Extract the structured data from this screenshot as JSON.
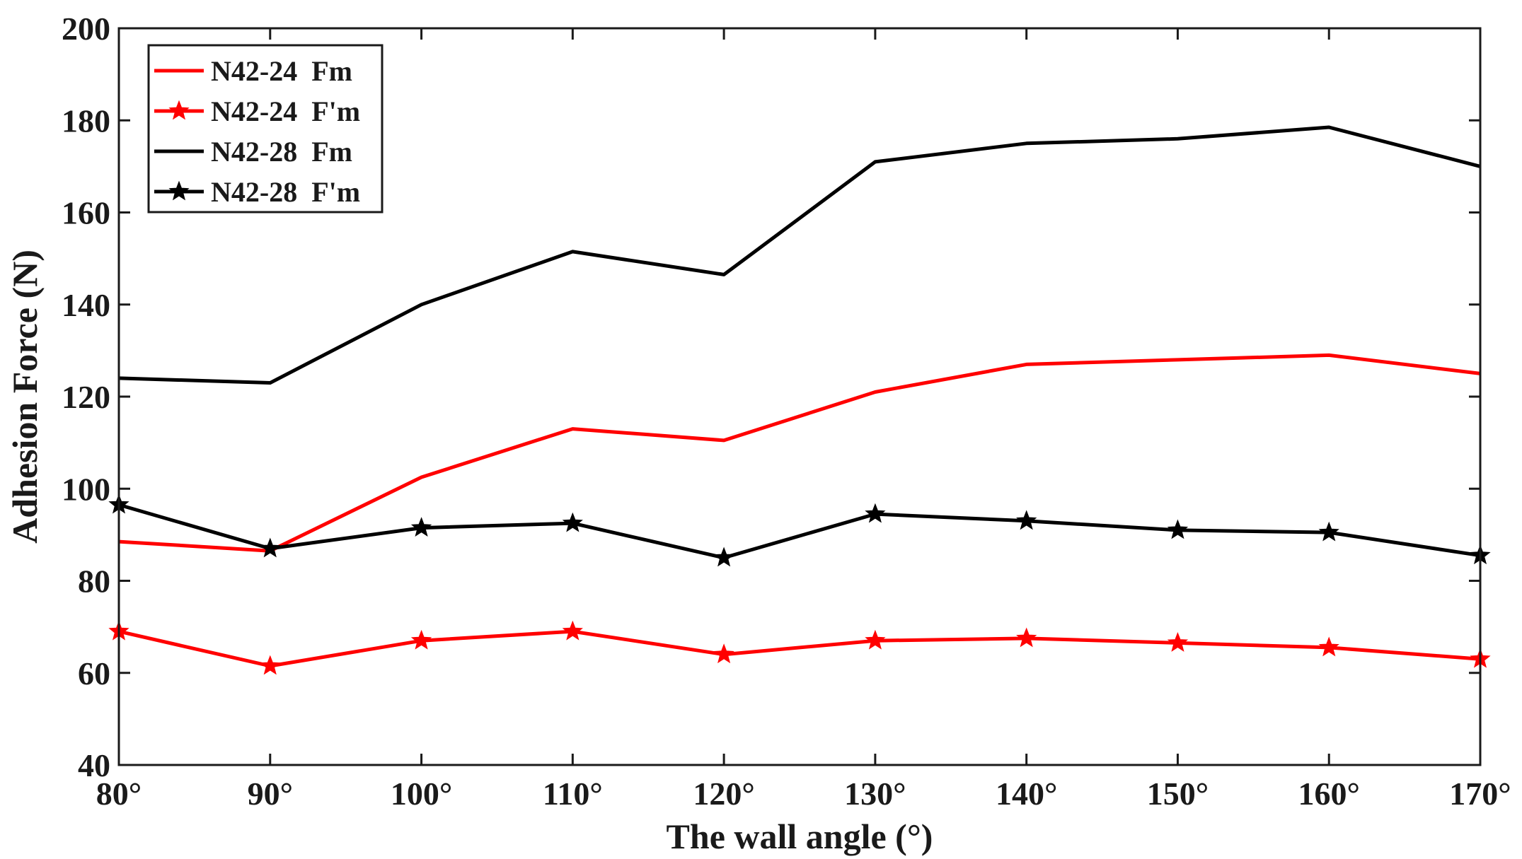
{
  "chart_data": {
    "type": "line",
    "title": "",
    "xlabel": "The wall angle (°)",
    "ylabel": "Adhesion Force (N)",
    "x": [
      80,
      90,
      100,
      110,
      120,
      130,
      140,
      150,
      160,
      170
    ],
    "x_tick_labels": [
      "80°",
      "90°",
      "100°",
      "110°",
      "120°",
      "130°",
      "140°",
      "150°",
      "160°",
      "170°"
    ],
    "xlim": [
      80,
      170
    ],
    "ylim": [
      40,
      200
    ],
    "y_ticks": [
      40,
      60,
      80,
      100,
      120,
      140,
      160,
      180,
      200
    ],
    "grid": false,
    "legend_position": "top-left",
    "series": [
      {
        "name": "N42-24  Fm",
        "color": "#ff0000",
        "marker": "none",
        "values": [
          88.5,
          86.5,
          102.5,
          113,
          110.5,
          121,
          127,
          128,
          129,
          125
        ]
      },
      {
        "name": "N42-24  F'm",
        "color": "#ff0000",
        "marker": "star",
        "values": [
          69,
          61.5,
          67,
          69,
          64,
          67,
          67.5,
          66.5,
          65.5,
          63
        ]
      },
      {
        "name": "N42-28  Fm",
        "color": "#000000",
        "marker": "none",
        "values": [
          124,
          123,
          140,
          151.5,
          146.5,
          171,
          175,
          176,
          178.5,
          170
        ]
      },
      {
        "name": "N42-28  F'm",
        "color": "#000000",
        "marker": "star",
        "values": [
          96.5,
          87,
          91.5,
          92.5,
          85,
          94.5,
          93,
          91,
          90.5,
          85.5
        ]
      }
    ]
  }
}
